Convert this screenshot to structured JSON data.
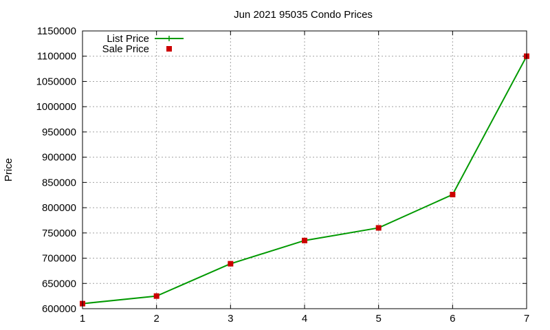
{
  "chart_data": {
    "type": "line",
    "title": "Jun 2021 95035 Condo Prices",
    "xlabel": "",
    "ylabel": "Price",
    "x": [
      1,
      2,
      3,
      4,
      5,
      6,
      7
    ],
    "xlim": [
      1,
      7
    ],
    "ylim": [
      600000,
      1150000
    ],
    "xticks": [
      "1",
      "2",
      "3",
      "4",
      "5",
      "6",
      "7"
    ],
    "yticks": [
      "600000",
      "650000",
      "700000",
      "750000",
      "800000",
      "850000",
      "900000",
      "950000",
      "1000000",
      "1050000",
      "1100000",
      "1150000"
    ],
    "grid": true,
    "legend_position": "top-left",
    "series": [
      {
        "name": "List Price",
        "kind": "line",
        "color": "#009900",
        "values": [
          610000,
          625000,
          689000,
          735000,
          760000,
          826000,
          1100000
        ]
      },
      {
        "name": "Sale Price",
        "kind": "points",
        "color": "#cc0000",
        "values": [
          610000,
          625000,
          689000,
          735000,
          760000,
          826000,
          1100000
        ]
      }
    ]
  }
}
